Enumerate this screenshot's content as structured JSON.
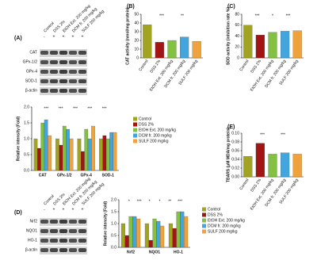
{
  "chart_data": [
    {
      "type": "bar",
      "panel": "(A)",
      "y_label": "Relative intensity (Fold)",
      "categories": [
        "CAT",
        "GPx-1/2",
        "GPx-4",
        "SOD-1"
      ],
      "series": [
        {
          "name": "Control",
          "color": "#a3a322",
          "values": [
            1.0,
            1.0,
            1.0,
            1.0
          ]
        },
        {
          "name": "DSS 2%",
          "color": "#a31515",
          "values": [
            0.7,
            0.8,
            0.6,
            1.1
          ]
        },
        {
          "name": "EtOH Ext. 200 mg/kg",
          "color": "#82c142",
          "values": [
            1.5,
            1.4,
            1.3,
            1.0
          ]
        },
        {
          "name": "DCM fr. 200 mg/kg",
          "color": "#42a5dd",
          "values": [
            1.6,
            1.3,
            1.0,
            1.2
          ]
        },
        {
          "name": "SULF 200 mg/kg",
          "color": "#f0a33c",
          "values": [
            1.1,
            1.0,
            1.4,
            1.2
          ]
        }
      ],
      "ylim": [
        0,
        2.0
      ],
      "yticks": [
        {
          "value": 0,
          "label": "0.0"
        },
        0.5,
        {
          "value": 1,
          "label": "1.0"
        },
        1.5,
        {
          "value": 2,
          "label": "2.0"
        }
      ],
      "annotations": [
        "***",
        "***",
        "***",
        "***",
        "***"
      ]
    },
    {
      "type": "bar",
      "panel": "(B)",
      "y_label": "CAT activity (nmol/mg protein)",
      "categories": [
        "Control",
        "DSS 2%",
        "EtOH Ext. 200 mg/kg",
        "DCM fr. 200 mg/kg",
        "SULF 200 mg/kg"
      ],
      "values": [
        38,
        18,
        20,
        24,
        19
      ],
      "colors": [
        "#a3a322",
        "#a31515",
        "#82c142",
        "#42a5dd",
        "#f0a33c"
      ],
      "ylim": [
        0,
        50
      ],
      "yticks": [
        0,
        10,
        20,
        30,
        40,
        50
      ],
      "annotations": [
        "***",
        "**"
      ]
    },
    {
      "type": "bar",
      "panel": "(C)",
      "y_label": "SOD activity (inhibition rate %)",
      "categories": [
        "Control",
        "DSS 2%",
        "EtOH Ext. 200 mg/kg",
        "DCM fr. 200 mg/kg",
        "SULF 200 mg/kg"
      ],
      "values": [
        60,
        42,
        47,
        49,
        50
      ],
      "colors": [
        "#a3a322",
        "#a31515",
        "#82c142",
        "#42a5dd",
        "#f0a33c"
      ],
      "ylim": [
        0,
        80
      ],
      "yticks": [
        0,
        20,
        40,
        60,
        80
      ],
      "annotations": [
        "***",
        "*",
        "***"
      ]
    },
    {
      "type": "bar",
      "panel": "(E)",
      "y_label": "TBARS (μM MDA/mg protein)",
      "categories": [
        "Control",
        "DSS 2%",
        "EtOH Ext. 200 mg/kg",
        "DCM fr. 200 mg/kg",
        "SULF 200 mg/kg"
      ],
      "values": [
        0.047,
        0.077,
        0.052,
        0.055,
        0.052
      ],
      "colors": [
        "#a3a322",
        "#a31515",
        "#82c142",
        "#42a5dd",
        "#f0a33c"
      ],
      "ylim": [
        0,
        0.1
      ],
      "yticks": [
        {
          "value": 0,
          "label": "0.00"
        },
        0.02,
        0.04,
        0.06,
        0.08,
        {
          "value": 0.1,
          "label": "0.10"
        }
      ],
      "annotations": [
        "***",
        "***"
      ]
    },
    {
      "type": "bar",
      "panel": "(D)",
      "y_label": "Relative intensity (Fold)",
      "categories": [
        "Nrf2",
        "NQO1",
        "HO-1"
      ],
      "series": [
        {
          "name": "Control",
          "color": "#a3a322",
          "values": [
            1.0,
            1.0,
            1.0
          ]
        },
        {
          "name": "DSS 2%",
          "color": "#a31515",
          "values": [
            0.5,
            0.3,
            0.8
          ]
        },
        {
          "name": "EtOH Ext. 200 mg/kg",
          "color": "#82c142",
          "values": [
            1.3,
            1.2,
            1.5
          ]
        },
        {
          "name": "DCM fr. 200 mg/kg",
          "color": "#42a5dd",
          "values": [
            1.3,
            1.1,
            1.5
          ]
        },
        {
          "name": "SULF 200 mg/kg",
          "color": "#f0a33c",
          "values": [
            1.2,
            0.9,
            1.3
          ]
        }
      ],
      "ylim": [
        0,
        2.0
      ],
      "yticks": [
        {
          "value": 0,
          "label": "0.0"
        },
        0.5,
        {
          "value": 1,
          "label": "1.0"
        },
        1.5,
        {
          "value": 2,
          "label": "2.0"
        }
      ],
      "annotations": [
        "*",
        "***",
        "*",
        "*",
        "**",
        "***"
      ]
    }
  ],
  "blots": [
    {
      "panel": "(A)",
      "lanes": [
        "Control",
        "DSS 2%",
        "EtOH Ext. 200 mg/kg",
        "DCM fr. 200 mg/kg",
        "SULF 200 mg/kg"
      ],
      "signs": [
        "-",
        "+",
        "+",
        "+",
        "+"
      ],
      "rows": [
        "CAT",
        "GPx-1/2",
        "GPx-4",
        "SOD-1",
        "β-actin"
      ]
    },
    {
      "panel": "(D)",
      "lanes": [
        "Control",
        "DSS 2%",
        "EtOH Ext. 200 mg/kg",
        "DCM fr. 200 mg/kg",
        "SULF 200 mg/kg"
      ],
      "signs": [
        "-",
        "+",
        "+",
        "+",
        "+"
      ],
      "rows": [
        "Nrf2",
        "NQO1",
        "HO-1",
        "β-actin"
      ]
    }
  ]
}
